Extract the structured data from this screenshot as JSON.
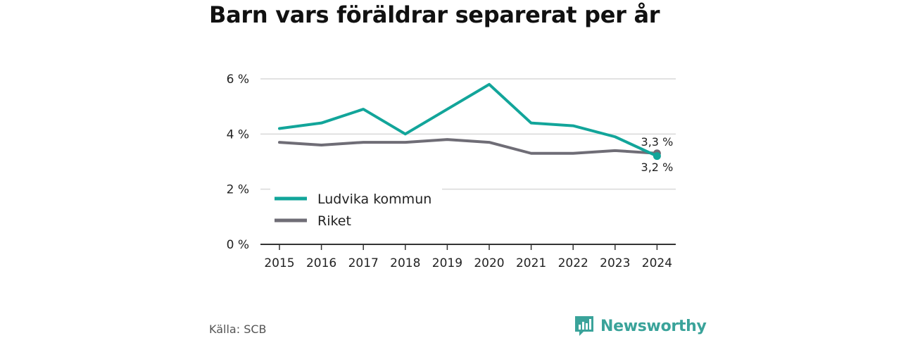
{
  "title": "Barn vars föräldrar separerat per år",
  "source": "Källa: SCB",
  "brand": {
    "name": "Newsworthy",
    "icon": "newsworthy-logo-icon"
  },
  "colors": {
    "ludvika": "#12a59a",
    "riket": "#6f6d76",
    "grid": "#d9d9d9",
    "axis": "#333333"
  },
  "chart_data": {
    "type": "line",
    "categories": [
      "2015",
      "2016",
      "2017",
      "2018",
      "2019",
      "2020",
      "2021",
      "2022",
      "2023",
      "2024"
    ],
    "series": [
      {
        "name": "Ludvika kommun",
        "values": [
          4.2,
          4.4,
          4.9,
          4.0,
          4.9,
          5.8,
          4.4,
          4.3,
          3.9,
          3.2
        ]
      },
      {
        "name": "Riket",
        "values": [
          3.7,
          3.6,
          3.7,
          3.7,
          3.8,
          3.7,
          3.3,
          3.3,
          3.4,
          3.3
        ]
      }
    ],
    "yticks": [
      "0 %",
      "2 %",
      "4 %",
      "6 %"
    ],
    "ylim": [
      0,
      6
    ],
    "annotations": {
      "riket_last": "3,3 %",
      "ludvika_last": "3,2 %"
    },
    "legend": "bottom-left",
    "grid": true
  }
}
